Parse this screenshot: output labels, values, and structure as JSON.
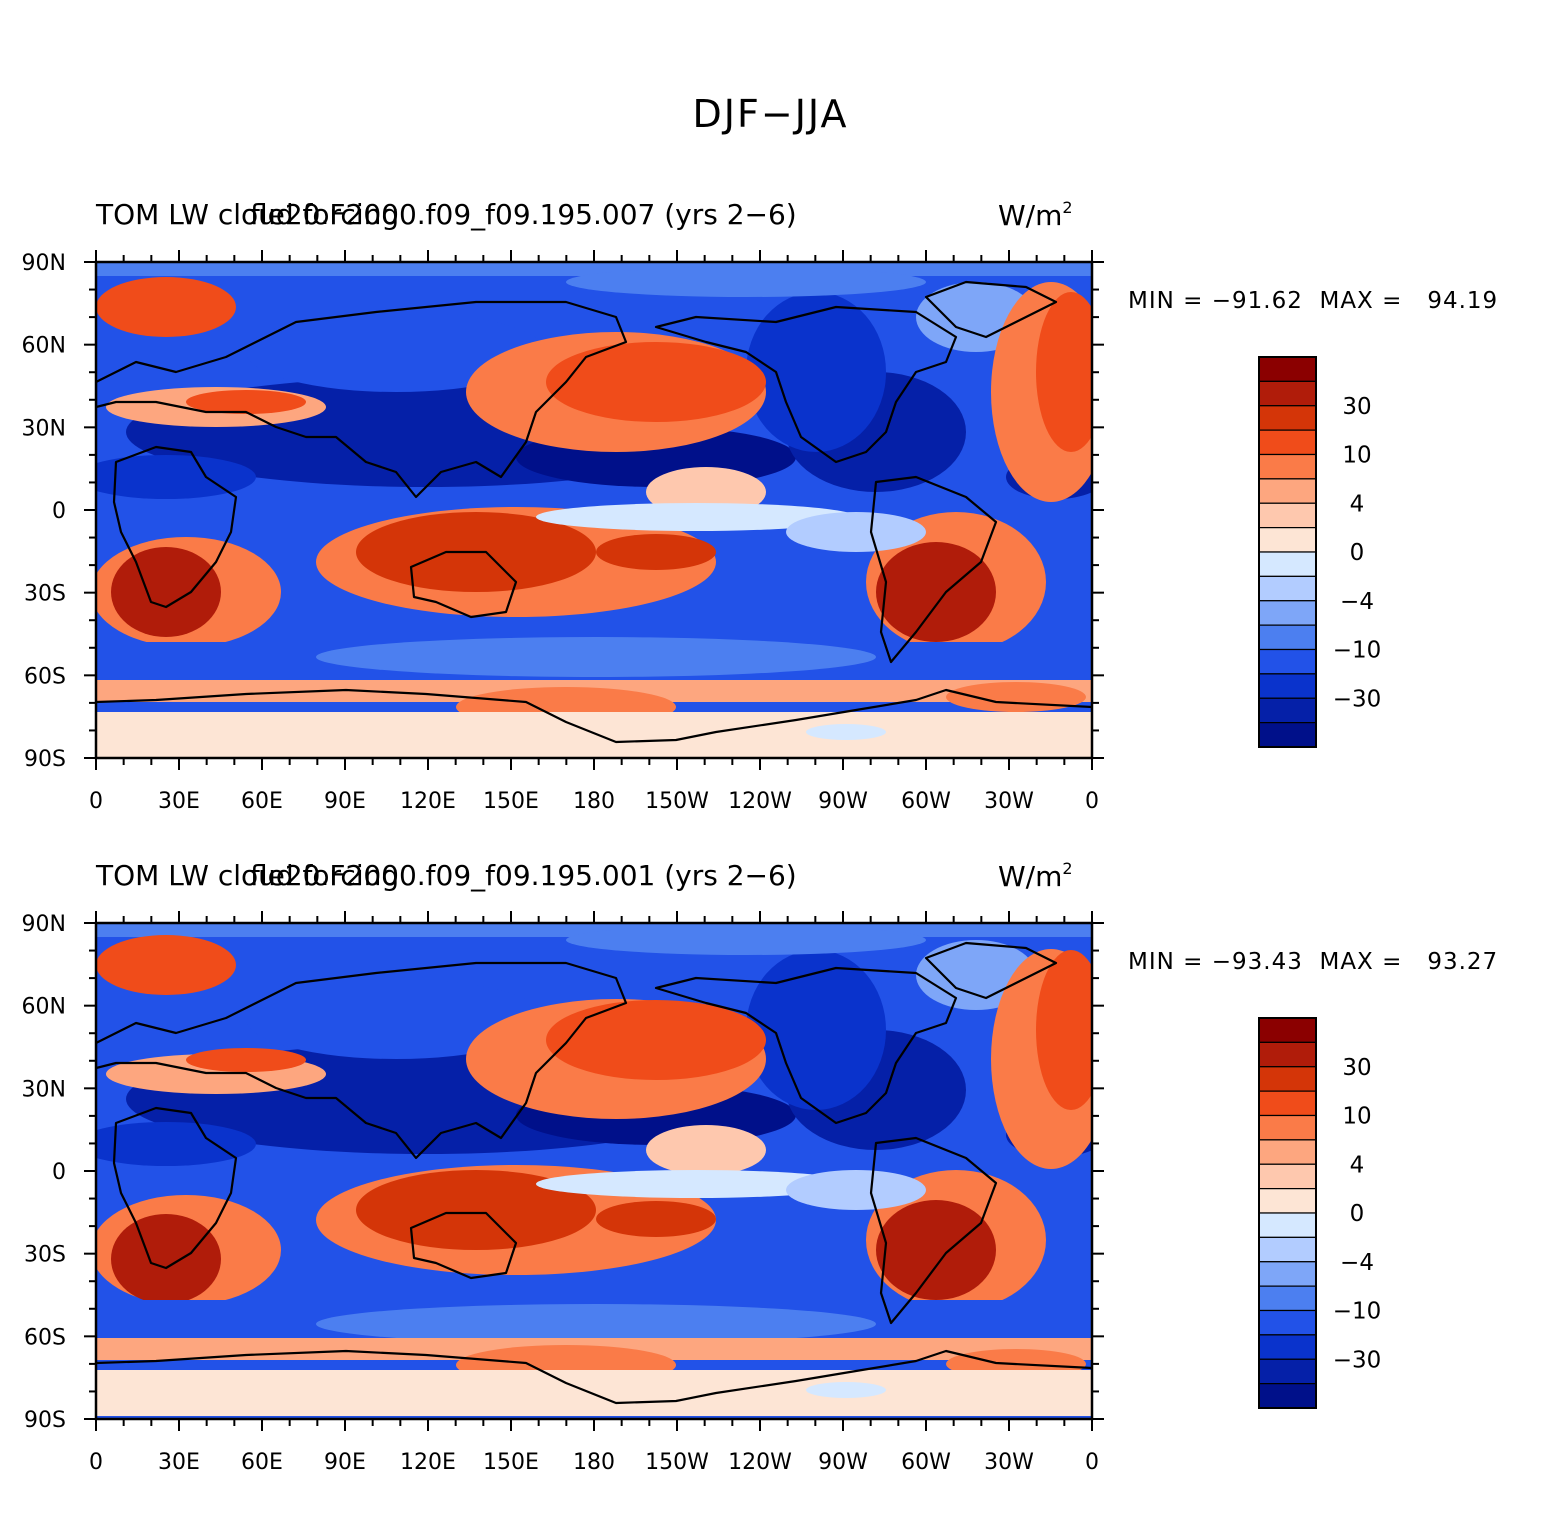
{
  "figure_title": "DJF−JJA",
  "color_scale": {
    "levels": [
      "30",
      "10",
      "4",
      "0",
      "−4",
      "−10",
      "−30"
    ],
    "colors": [
      "#8b0000",
      "#b01c0a",
      "#d43508",
      "#f04c1a",
      "#fa7b48",
      "#fda67f",
      "#fec8ae",
      "#fde5d5",
      "#d5e8ff",
      "#b2ccff",
      "#7ea6f8",
      "#4c7ff0",
      "#2252e8",
      "#0a33cc",
      "#0520a8",
      "#00108a"
    ]
  },
  "axes": {
    "lon_labels": [
      "0",
      "30E",
      "60E",
      "90E",
      "120E",
      "150E",
      "180",
      "150W",
      "120W",
      "90W",
      "60W",
      "30W",
      "0"
    ],
    "lat_labels": [
      "90N",
      "60N",
      "30N",
      "0",
      "30S",
      "60S",
      "90S"
    ]
  },
  "panels": [
    {
      "variable": "TOM LW cloud forcing",
      "case": "fle20.F2000.f09_f09.195.007 (yrs 2−6)",
      "units": "W/m",
      "units_sup": "2",
      "min_label": "MIN = −91.62",
      "max_label": "MAX =   94.19"
    },
    {
      "variable": "TOM LW cloud forcing",
      "case": "fle20.F2000.f09_f09.195.001 (yrs 2−6)",
      "units": "W/m",
      "units_sup": "2",
      "min_label": "MIN = −93.43",
      "max_label": "MAX =   93.27"
    }
  ]
}
